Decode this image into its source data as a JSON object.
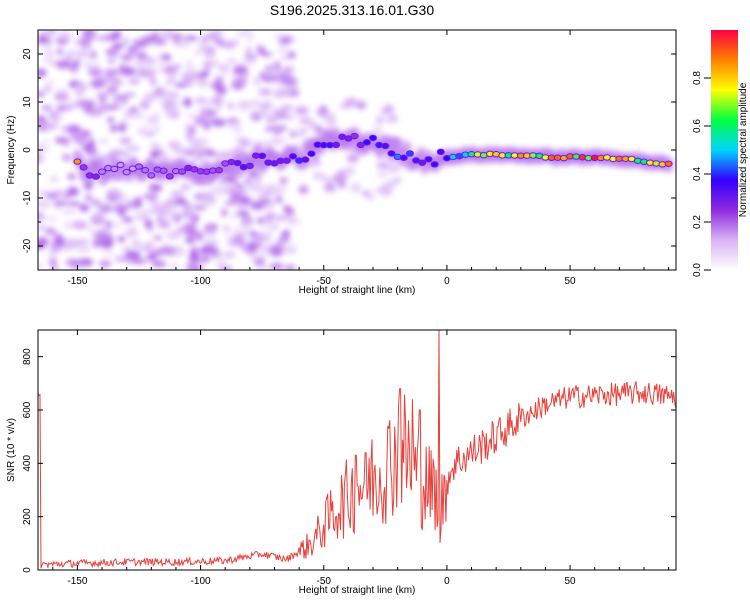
{
  "title": "S196.2025.313.16.01.G30",
  "spectrogram": {
    "type": "heatmap",
    "xlabel": "Height of straight line (km)",
    "ylabel": "Frequency (Hz)",
    "xlim": [
      -166,
      93
    ],
    "ylim": [
      -25,
      25
    ],
    "xticks": [
      -150,
      -100,
      -50,
      0,
      50
    ],
    "yticks": [
      20,
      10,
      0,
      -10,
      -20
    ],
    "colorbar": {
      "label": "Normalized spectral amplitude",
      "range": [
        0,
        1
      ],
      "ticks": [
        "0.0",
        "0.2",
        "0.4",
        "0.6",
        "0.8"
      ],
      "stops": [
        "#ffffff",
        "#d9b3f5",
        "#8f2be0",
        "#3300ff",
        "#00d5ff",
        "#00ff40",
        "#ffff00",
        "#ff8000",
        "#ff0040"
      ]
    },
    "trace": [
      {
        "x": -148,
        "f": -4.5,
        "a": 0.3
      },
      {
        "x": -135,
        "f": -4.0,
        "a": 0.2
      },
      {
        "x": -120,
        "f": -4.5,
        "a": 0.2
      },
      {
        "x": -100,
        "f": -4.5,
        "a": 0.3
      },
      {
        "x": -88,
        "f": -3.5,
        "a": 0.3
      },
      {
        "x": -75,
        "f": -2.0,
        "a": 0.4
      },
      {
        "x": -60,
        "f": -2.0,
        "a": 0.4
      },
      {
        "x": -50,
        "f": 2.0,
        "a": 0.4
      },
      {
        "x": -40,
        "f": 2.0,
        "a": 0.3
      },
      {
        "x": -30,
        "f": 1.5,
        "a": 0.4
      },
      {
        "x": -20,
        "f": -0.5,
        "a": 0.5
      },
      {
        "x": -10,
        "f": -2.0,
        "a": 0.4
      },
      {
        "x": 0,
        "f": -1.5,
        "a": 0.5
      },
      {
        "x": 10,
        "f": -1.0,
        "a": 0.7
      },
      {
        "x": 25,
        "f": -1.0,
        "a": 0.8
      },
      {
        "x": 45,
        "f": -1.5,
        "a": 0.9
      },
      {
        "x": 60,
        "f": -1.5,
        "a": 0.95
      },
      {
        "x": 75,
        "f": -2.0,
        "a": 0.8
      },
      {
        "x": 90,
        "f": -3.0,
        "a": 0.9
      }
    ]
  },
  "snr": {
    "type": "line",
    "xlabel": "Height of straight line (km)",
    "ylabel": "SNR (10 * v/v)",
    "xlim": [
      -166,
      93
    ],
    "ylim": [
      0,
      900
    ],
    "xticks": [
      -150,
      -100,
      -50,
      0,
      50
    ],
    "yticks": [
      0,
      200,
      400,
      600,
      800
    ],
    "color": "#e8403a",
    "series": [
      {
        "x": -165,
        "y": 20
      },
      {
        "x": -150,
        "y": 25
      },
      {
        "x": -130,
        "y": 30
      },
      {
        "x": -110,
        "y": 30
      },
      {
        "x": -90,
        "y": 35
      },
      {
        "x": -75,
        "y": 60
      },
      {
        "x": -65,
        "y": 40
      },
      {
        "x": -55,
        "y": 100
      },
      {
        "x": -45,
        "y": 230
      },
      {
        "x": -35,
        "y": 320
      },
      {
        "x": -25,
        "y": 380
      },
      {
        "x": -19,
        "y": 470
      },
      {
        "x": -10,
        "y": 330
      },
      {
        "x": -3,
        "y": 280
      },
      {
        "x": 3,
        "y": 400
      },
      {
        "x": 10,
        "y": 440
      },
      {
        "x": 20,
        "y": 500
      },
      {
        "x": 30,
        "y": 570
      },
      {
        "x": 40,
        "y": 620
      },
      {
        "x": 50,
        "y": 650
      },
      {
        "x": 60,
        "y": 655
      },
      {
        "x": 70,
        "y": 660
      },
      {
        "x": 80,
        "y": 665
      },
      {
        "x": 92,
        "y": 650
      }
    ],
    "spikes": [
      {
        "x": -3,
        "y": 910
      },
      {
        "x": -19,
        "y": 680
      },
      {
        "x": -37,
        "y": 430
      },
      {
        "x": -33,
        "y": 440
      },
      {
        "x": -14,
        "y": 640
      },
      {
        "x": -11,
        "y": 600
      }
    ]
  }
}
